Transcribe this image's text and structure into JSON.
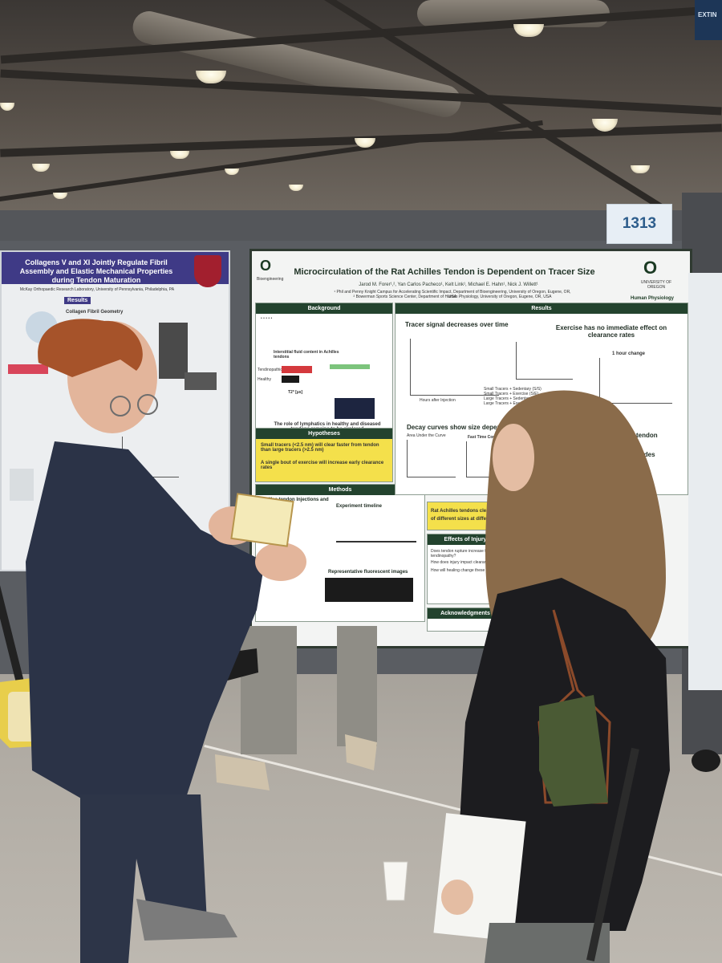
{
  "scene": {
    "booth_number": "1313",
    "exit_sign": "EXTIN"
  },
  "poster_left": {
    "title": "Collagens V and XI Jointly Regulate Fibril Assembly and Elastic Mechanical Properties during Tendon Maturation",
    "authors": "McKay Orthopaedic Research Laboratory, University of Pennsylvania, Philadelphia, PA",
    "section_results": "Results",
    "sub_fibril": "Collagen Fibril Geometry"
  },
  "poster_main": {
    "title": "Microcirculation of the Rat Achilles Tendon is Dependent on Tracer Size",
    "authors": "Jarod M. Forer¹,², Yan Carlos Pacheco¹, Kelt Link¹, Michael E. Hahn¹, Nick J. Willett¹",
    "affiliation_1": "¹ Phil and Penny Knight Campus for Accelerating Scientific Impact, Department of Bioengineering, University of Oregon, Eugene, OR, USA",
    "affiliation_2": "² Bowerman Sports Science Center, Department of Human Physiology, University of Oregon, Eugene, OR, USA",
    "logo_left_label": "Bioengineering",
    "logo_right_label": "UNIVERSITY OF OREGON",
    "logo_right_sub": "Human Physiology",
    "background": {
      "heading": "Background",
      "fluid_title": "Interstitial fluid content in Achilles tendons",
      "axis_label": "T2* [µs]",
      "bar_labels": [
        "Tendinopathic",
        "Healthy"
      ],
      "lymphatics": "The role of lymphatics in healthy and diseased tendons remains to be explored"
    },
    "hypotheses": {
      "heading": "Hypotheses",
      "h1": "Small tracers (<2.5 nm) will clear faster from tendon than large tracers (>2.5 nm)",
      "h2": "A single bout of exercise will increase early clearance rates"
    },
    "methods": {
      "heading": "Methods",
      "sub1": "Achilles tendon Injections and",
      "timeline": "Experiment timeline",
      "images": "Representative fluorescent images"
    },
    "results": {
      "heading": "Results",
      "sub1": "Tracer signal decreases over time",
      "sub2": "Exercise has no immediate effect on clearance rates",
      "sub3": "Decay curves show size dependent clearance",
      "hour_change": "1 hour change",
      "fast_time": "Fast Time Constant",
      "area_under": "Area Under the Curve",
      "xlabel": "Hours after Injection",
      "legend": [
        "Small Tracers + Sedentary (S/S)",
        "Small Tracers + Exercise (S/E)",
        "Large Tracers + Sedentary (L/S)",
        "Large Tracers + Exercise (L/E)"
      ],
      "tendon_note": "tendon",
      "nodes_note": "nodes"
    },
    "conclusion": {
      "text1": "Rat Achilles tendons clear",
      "text2": "of different sizes at differ"
    },
    "injury": {
      "heading": "Effects of Injury",
      "q1": "Does tendon rupture increase fluid tendinopathy?",
      "q2": "How does injury impact clearance?",
      "q3": "How will healing change these time?"
    },
    "ack": "Acknowledgments"
  },
  "colors": {
    "poster_green": "#23432e",
    "highlight_yellow": "#f4e04b",
    "left_poster_purple": "#3f3a86",
    "jacket_navy": "#2b3347",
    "bag_cream": "#efe3b3"
  }
}
